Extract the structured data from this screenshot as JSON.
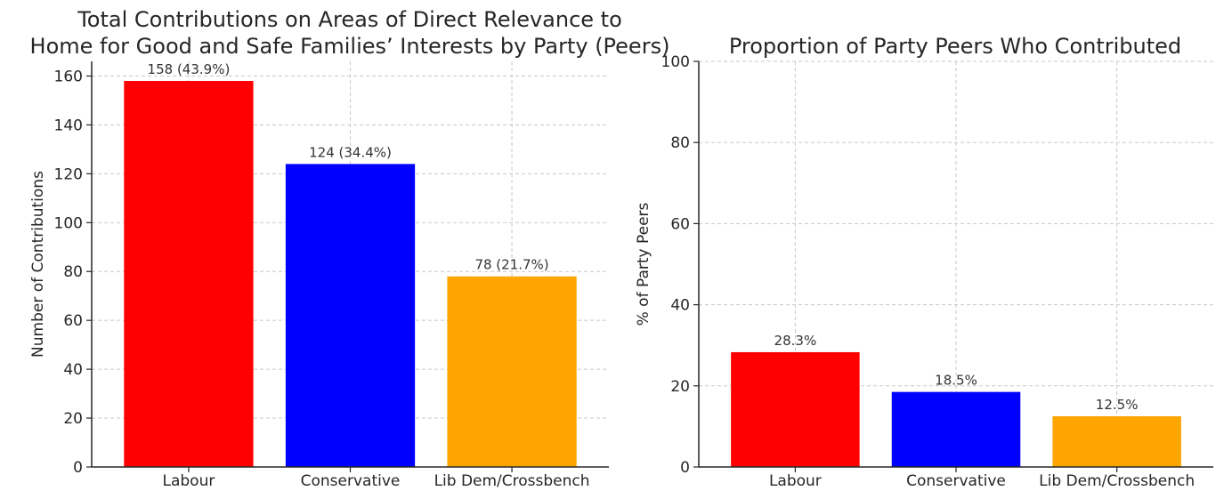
{
  "colors": {
    "Labour": "#ff0000",
    "Conservative": "#0000ff",
    "Lib Dem/Crossbench": "#ffa500"
  },
  "chart_data": [
    {
      "type": "bar",
      "title_lines": [
        "Total Contributions on Areas of Direct Relevance to",
        "Home for Good and Safe Families’ Interests by Party (Peers)"
      ],
      "xlabel": "",
      "ylabel": "Number of Contributions",
      "categories": [
        "Labour",
        "Conservative",
        "Lib Dem/Crossbench"
      ],
      "values": [
        158,
        124,
        78
      ],
      "data_labels": [
        "158 (43.9%)",
        "124 (34.4%)",
        "78 (21.7%)"
      ],
      "ylim": [
        0,
        166
      ],
      "yticks": [
        0,
        20,
        40,
        60,
        80,
        100,
        120,
        140,
        160
      ],
      "grid": true
    },
    {
      "type": "bar",
      "title_lines": [
        "Proportion of Party Peers Who Contributed"
      ],
      "xlabel": "",
      "ylabel": "% of Party Peers",
      "categories": [
        "Labour",
        "Conservative",
        "Lib Dem/Crossbench"
      ],
      "values": [
        28.3,
        18.5,
        12.5
      ],
      "data_labels": [
        "28.3%",
        "18.5%",
        "12.5%"
      ],
      "ylim": [
        0,
        100
      ],
      "yticks": [
        0,
        20,
        40,
        60,
        80,
        100
      ],
      "grid": true
    }
  ]
}
